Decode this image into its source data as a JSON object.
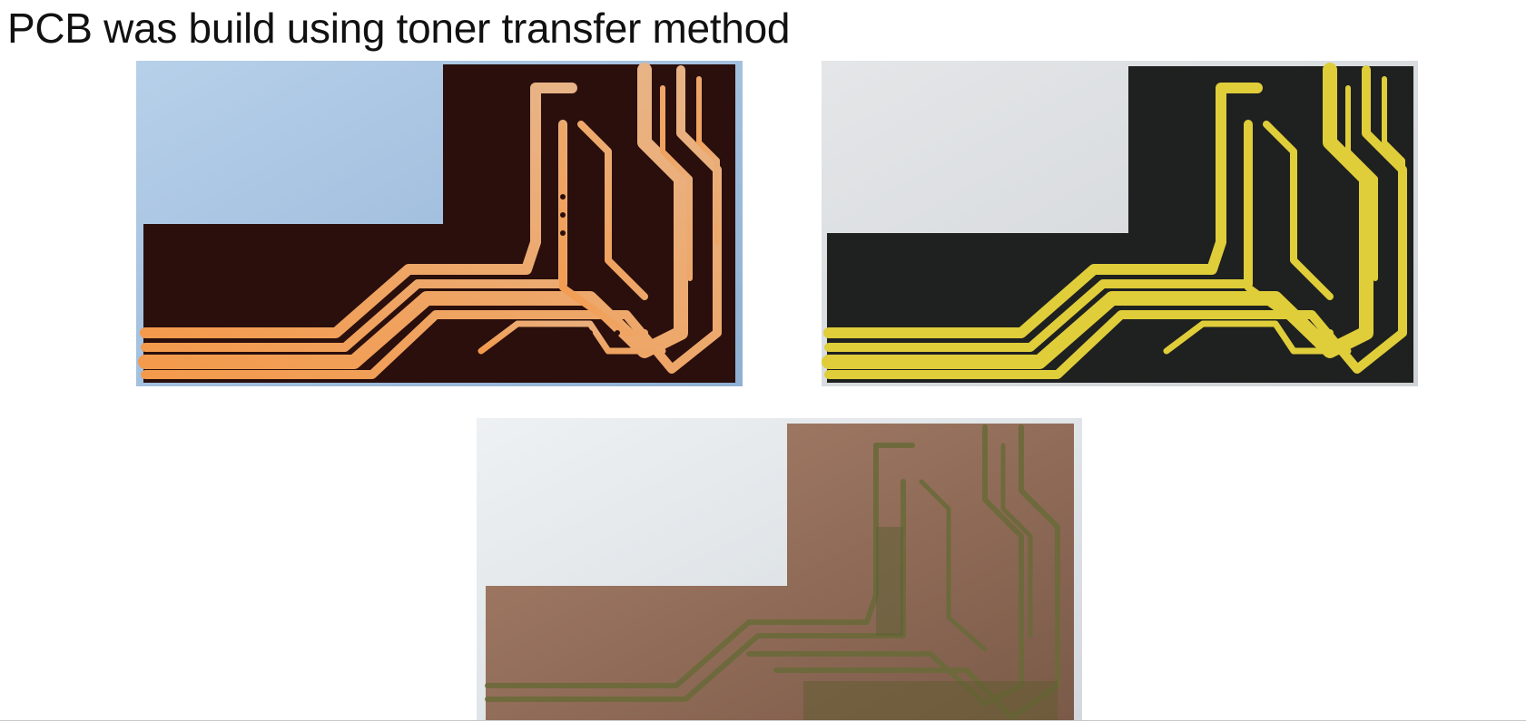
{
  "slide": {
    "title": "PCB was build using toner transfer method"
  },
  "photos": [
    {
      "name": "pcb-toner-on-copper-photo",
      "background_color": "#a9c6e3",
      "board_color": "#2a0f0c",
      "trace_color": "#e58f4a"
    },
    {
      "name": "pcb-etched-with-toner-photo",
      "background_color": "#d9dcdf",
      "board_color": "#1e211f",
      "trace_color": "#e0cd3a"
    },
    {
      "name": "pcb-cleaned-copper-photo",
      "background_color": "#dde2e6",
      "board_color": "#5a4030",
      "trace_color": "#b58c72"
    }
  ]
}
